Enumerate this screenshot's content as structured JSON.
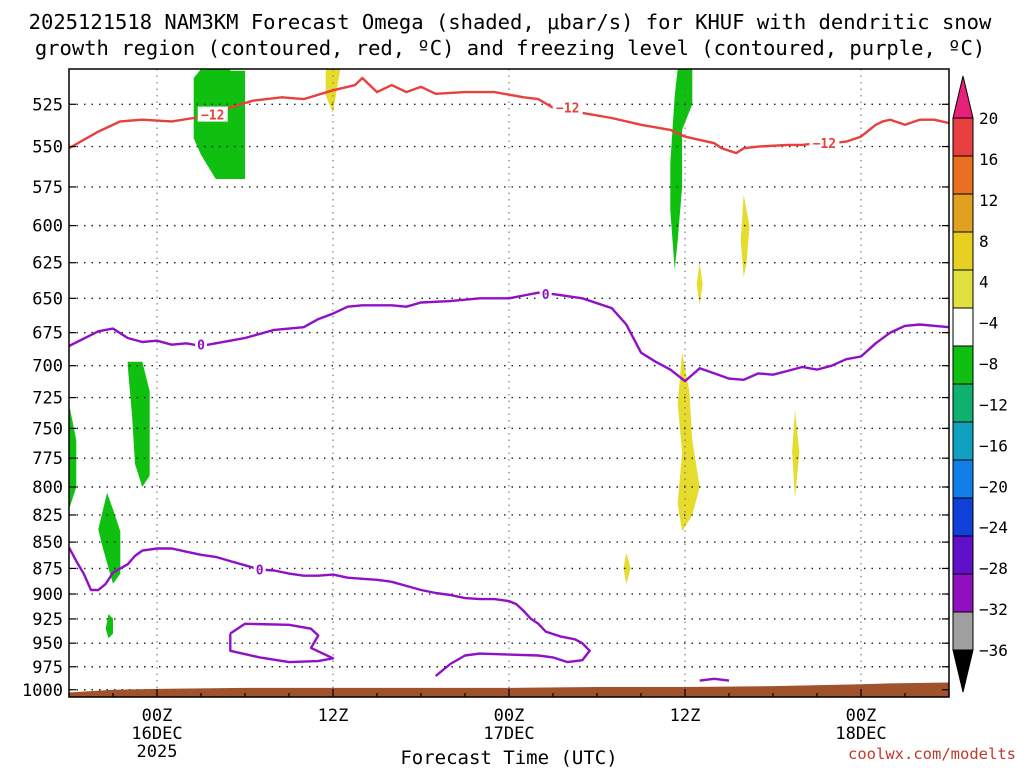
{
  "title_line1": "2025121518 NAM3KM Forecast Omega (shaded, μbar/s) for KHUF with dendritic snow",
  "title_line2": "growth region (contoured, red, ºC) and freezing level (contoured, purple, ºC)",
  "credit": "coolwx.com/modelts",
  "chart_data": {
    "type": "contour",
    "xlabel": "Forecast Time (UTC)",
    "x_tick_labels": [
      {
        "hour": 6,
        "lines": [
          "00Z",
          "16DEC",
          "2025"
        ]
      },
      {
        "hour": 18,
        "lines": [
          "12Z"
        ]
      },
      {
        "hour": 30,
        "lines": [
          "00Z",
          "17DEC"
        ]
      },
      {
        "hour": 42,
        "lines": [
          "12Z"
        ]
      },
      {
        "hour": 54,
        "lines": [
          "00Z",
          "18DEC"
        ]
      }
    ],
    "xlim": [
      0,
      60
    ],
    "y_tick_labels": [
      525,
      550,
      575,
      600,
      625,
      650,
      675,
      700,
      725,
      750,
      775,
      800,
      825,
      850,
      875,
      900,
      925,
      950,
      975,
      1000
    ],
    "ylim": [
      505,
      1008
    ],
    "y_scale": "log-pressure",
    "grid": true,
    "colorbar": {
      "labels": [
        "20",
        "16",
        "12",
        "8",
        "4",
        "−4",
        "−8",
        "−12",
        "−16",
        "−20",
        "−24",
        "−28",
        "−32",
        "−36"
      ],
      "colors": [
        "#e8207a",
        "#e84040",
        "#e87020",
        "#e0a020",
        "#e8d020",
        "#e0e040",
        "#ffffff",
        "#10c010",
        "#10b070",
        "#10a0c0",
        "#1080e8",
        "#1040d8",
        "#6010c8",
        "#9010c0",
        "#a0a0a0",
        "#000000"
      ]
    },
    "contour_labels": {
      "dendritic": "−12",
      "freezing": "0"
    },
    "contours": {
      "dendritic_minus12_c": [
        [
          0,
          551
        ],
        [
          2,
          541
        ],
        [
          3.5,
          535
        ],
        [
          5,
          534
        ],
        [
          7,
          535
        ],
        [
          8.5,
          533
        ],
        [
          9.5,
          531
        ],
        [
          11,
          527
        ],
        [
          12.5,
          523
        ],
        [
          14.5,
          521
        ],
        [
          16,
          522
        ],
        [
          18,
          517
        ],
        [
          19.5,
          514
        ],
        [
          20,
          510
        ],
        [
          21,
          518
        ],
        [
          22,
          514
        ],
        [
          23,
          518
        ],
        [
          24,
          515
        ],
        [
          25,
          519
        ],
        [
          27,
          518
        ],
        [
          29,
          518
        ],
        [
          31,
          521
        ],
        [
          32,
          522
        ],
        [
          33,
          527
        ],
        [
          34,
          527
        ],
        [
          35,
          530
        ],
        [
          37,
          533
        ],
        [
          39,
          537
        ],
        [
          41,
          540
        ],
        [
          42,
          544
        ],
        [
          43,
          546
        ],
        [
          44,
          548
        ],
        [
          44.5,
          551
        ],
        [
          45.5,
          554
        ],
        [
          46,
          551
        ],
        [
          47,
          550
        ],
        [
          49,
          549
        ],
        [
          50,
          549
        ],
        [
          51,
          548
        ],
        [
          52,
          548
        ],
        [
          53,
          547
        ],
        [
          54,
          544
        ],
        [
          55,
          537
        ],
        [
          55.5,
          535
        ],
        [
          56,
          534
        ],
        [
          57,
          537
        ],
        [
          58,
          534
        ],
        [
          59,
          534
        ],
        [
          60,
          536
        ]
      ],
      "freezing_0_c_upper": [
        [
          0,
          685
        ],
        [
          2,
          674
        ],
        [
          3,
          672
        ],
        [
          4,
          679
        ],
        [
          5,
          682
        ],
        [
          6,
          681
        ],
        [
          7,
          684
        ],
        [
          8,
          683
        ],
        [
          9,
          685
        ],
        [
          10,
          683
        ],
        [
          11,
          681
        ],
        [
          12,
          679
        ],
        [
          14,
          673
        ],
        [
          16,
          671
        ],
        [
          17,
          665
        ],
        [
          18,
          661
        ],
        [
          19,
          656
        ],
        [
          20,
          655
        ],
        [
          22,
          655
        ],
        [
          23,
          656
        ],
        [
          24,
          653
        ],
        [
          26,
          652
        ],
        [
          28,
          650
        ],
        [
          30,
          650
        ],
        [
          31,
          648
        ],
        [
          32,
          646
        ],
        [
          33,
          647
        ],
        [
          35,
          650
        ],
        [
          37,
          657
        ],
        [
          38,
          669
        ],
        [
          39,
          690
        ],
        [
          40,
          697
        ],
        [
          41,
          703
        ],
        [
          42,
          712
        ],
        [
          43,
          702
        ],
        [
          44,
          706
        ],
        [
          45,
          710
        ],
        [
          46,
          711
        ],
        [
          47,
          706
        ],
        [
          48,
          707
        ],
        [
          49,
          704
        ],
        [
          50,
          701
        ],
        [
          51,
          703
        ],
        [
          52,
          700
        ],
        [
          53,
          695
        ],
        [
          54,
          693
        ],
        [
          55,
          683
        ],
        [
          56,
          675
        ],
        [
          57,
          670
        ],
        [
          58,
          669
        ],
        [
          60,
          671
        ]
      ],
      "freezing_0_c_lower": [
        [
          0,
          855
        ],
        [
          0.5,
          868
        ],
        [
          1,
          880
        ],
        [
          1.5,
          896
        ],
        [
          2,
          896
        ],
        [
          2.5,
          890
        ],
        [
          3,
          879
        ],
        [
          4,
          871
        ],
        [
          4.5,
          863
        ],
        [
          5,
          858
        ],
        [
          6,
          856
        ],
        [
          7,
          856
        ],
        [
          8,
          859
        ],
        [
          9,
          862
        ],
        [
          10,
          864
        ],
        [
          11,
          868
        ],
        [
          12,
          872
        ],
        [
          13,
          876
        ],
        [
          14,
          877
        ],
        [
          15,
          880
        ],
        [
          16,
          882
        ],
        [
          17,
          882
        ],
        [
          18,
          881
        ],
        [
          19,
          884
        ],
        [
          20,
          885
        ],
        [
          21,
          886
        ],
        [
          22,
          888
        ],
        [
          23,
          892
        ],
        [
          24,
          896
        ],
        [
          25,
          899
        ],
        [
          26,
          901
        ],
        [
          27,
          904
        ],
        [
          28,
          905
        ],
        [
          29,
          905
        ],
        [
          30,
          907
        ],
        [
          30.5,
          910
        ],
        [
          31,
          917
        ],
        [
          31.5,
          925
        ],
        [
          32,
          930
        ],
        [
          32.5,
          938
        ],
        [
          33.5,
          943
        ],
        [
          34.5,
          946
        ],
        [
          35,
          950
        ],
        [
          35.5,
          958
        ],
        [
          35,
          968
        ],
        [
          34,
          970
        ],
        [
          33,
          965
        ],
        [
          32,
          963
        ],
        [
          30,
          962
        ],
        [
          28,
          961
        ],
        [
          27,
          963
        ],
        [
          26,
          972
        ],
        [
          25,
          985
        ]
      ],
      "freezing_0_c_closed": [
        [
          11,
          940
        ],
        [
          12,
          930
        ],
        [
          15,
          931
        ],
        [
          16.5,
          935
        ],
        [
          17,
          942
        ],
        [
          16.5,
          955
        ],
        [
          18,
          966
        ],
        [
          17,
          969
        ],
        [
          15,
          970
        ],
        [
          13,
          965
        ],
        [
          11,
          958
        ],
        [
          11,
          940
        ]
      ],
      "freezing_0_c_small": [
        [
          43,
          990
        ],
        [
          44,
          988
        ],
        [
          45,
          990
        ]
      ]
    },
    "omega_regions": [
      {
        "value_range": "-8 to -4",
        "points": [
          [
            9,
            505
          ],
          [
            11,
            505
          ],
          [
            11,
            506
          ],
          [
            12,
            506
          ],
          [
            12,
            570
          ],
          [
            10,
            570
          ],
          [
            9,
            555
          ],
          [
            8.5,
            545
          ],
          [
            8.5,
            510
          ],
          [
            9,
            505
          ]
        ]
      },
      {
        "value_range": "-8 to -4",
        "points": [
          [
            4,
            697
          ],
          [
            5,
            697
          ],
          [
            5.5,
            720
          ],
          [
            5.5,
            790
          ],
          [
            5,
            800
          ],
          [
            4.5,
            780
          ],
          [
            4.3,
            740
          ],
          [
            4,
            700
          ]
        ]
      },
      {
        "value_range": "-8 to -4",
        "points": [
          [
            0,
            730
          ],
          [
            0.5,
            760
          ],
          [
            0.5,
            800
          ],
          [
            0,
            820
          ]
        ]
      },
      {
        "value_range": "-8 to -4",
        "points": [
          [
            2.6,
            805
          ],
          [
            3,
            820
          ],
          [
            3.5,
            840
          ],
          [
            3.5,
            880
          ],
          [
            3,
            890
          ],
          [
            2.6,
            870
          ],
          [
            2.2,
            850
          ],
          [
            2,
            838
          ],
          [
            2.6,
            805
          ]
        ]
      },
      {
        "value_range": "-8 to -4",
        "points": [
          [
            2.7,
            920
          ],
          [
            3,
            925
          ],
          [
            3,
            940
          ],
          [
            2.7,
            945
          ],
          [
            2.5,
            935
          ],
          [
            2.7,
            920
          ]
        ]
      },
      {
        "value_range": "-8 to -4",
        "points": [
          [
            41.5,
            505
          ],
          [
            42.5,
            505
          ],
          [
            42.5,
            525
          ],
          [
            41.8,
            540
          ],
          [
            41.8,
            575
          ],
          [
            41.5,
            610
          ],
          [
            41.3,
            630
          ],
          [
            41,
            590
          ],
          [
            41,
            560
          ],
          [
            41.3,
            520
          ],
          [
            41.5,
            505
          ]
        ]
      },
      {
        "value_range": "4 to 8",
        "points": [
          [
            17.5,
            505
          ],
          [
            18.5,
            505
          ],
          [
            18,
            530
          ],
          [
            17.5,
            520
          ]
        ]
      },
      {
        "value_range": "4 to 8",
        "points": [
          [
            41.8,
            690
          ],
          [
            42.3,
            720
          ],
          [
            42.5,
            760
          ],
          [
            43,
            800
          ],
          [
            42.5,
            825
          ],
          [
            41.8,
            840
          ],
          [
            41.5,
            815
          ],
          [
            41.8,
            770
          ],
          [
            41.5,
            730
          ],
          [
            41.8,
            690
          ]
        ]
      },
      {
        "value_range": "4 to 8",
        "points": [
          [
            46,
            580
          ],
          [
            46.4,
            600
          ],
          [
            46.2,
            625
          ],
          [
            46,
            635
          ],
          [
            45.8,
            610
          ],
          [
            46,
            580
          ]
        ]
      },
      {
        "value_range": "4 to 8",
        "points": [
          [
            43,
            625
          ],
          [
            43.2,
            640
          ],
          [
            43,
            655
          ],
          [
            42.8,
            640
          ]
        ]
      },
      {
        "value_range": "4 to 8",
        "points": [
          [
            49.5,
            735
          ],
          [
            49.8,
            770
          ],
          [
            49.5,
            810
          ],
          [
            49.3,
            770
          ]
        ]
      },
      {
        "value_range": "4 to 8",
        "points": [
          [
            38,
            860
          ],
          [
            38.3,
            875
          ],
          [
            38,
            890
          ],
          [
            37.8,
            875
          ]
        ]
      }
    ],
    "terrain_color": "#a0522d",
    "terrain": [
      [
        0,
        1003
      ],
      [
        3,
        1000
      ],
      [
        6,
        999
      ],
      [
        12,
        998
      ],
      [
        18,
        998
      ],
      [
        24,
        998
      ],
      [
        30,
        998
      ],
      [
        36,
        997
      ],
      [
        42,
        997
      ],
      [
        48,
        996
      ],
      [
        54,
        994
      ],
      [
        56,
        993
      ],
      [
        60,
        992
      ]
    ]
  }
}
